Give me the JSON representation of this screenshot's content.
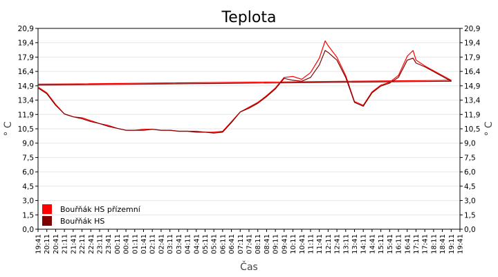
{
  "chart_data": {
    "type": "line",
    "title": "Teplota",
    "xlabel": "Čas",
    "ylabel": "° C",
    "ylim": [
      0,
      20.9
    ],
    "y_ticks": [
      "0,0",
      "1,5",
      "3,0",
      "4,5",
      "6,0",
      "7,5",
      "9,0",
      "10,5",
      "11,9",
      "13,4",
      "14,9",
      "16,4",
      "17,9",
      "19,4",
      "20,9"
    ],
    "x_ticks": [
      "19:41",
      "20:11",
      "20:41",
      "21:11",
      "21:41",
      "22:11",
      "22:41",
      "23:11",
      "23:41",
      "00:11",
      "00:41",
      "01:11",
      "01:41",
      "02:11",
      "02:41",
      "03:11",
      "03:41",
      "04:11",
      "04:41",
      "05:11",
      "05:41",
      "06:11",
      "06:41",
      "07:11",
      "07:41",
      "08:11",
      "08:41",
      "09:11",
      "09:41",
      "10:11",
      "10:41",
      "11:11",
      "11:41",
      "12:11",
      "12:41",
      "13:11",
      "13:41",
      "14:11",
      "14:41",
      "15:11",
      "15:41",
      "16:11",
      "16:41",
      "17:11",
      "17:41",
      "18:11",
      "18:41",
      "19:11",
      "19:41"
    ],
    "grid": true,
    "legend_position": "bottom-left",
    "colors": {
      "series_1": "#ff0000",
      "series_2": "#800000",
      "grid": "#e6e6e6",
      "axis": "#000000"
    },
    "series": [
      {
        "name": "Bouřňák HS přízemní",
        "x": [
          "19:41",
          "20:11",
          "20:41",
          "21:11",
          "21:41",
          "22:11",
          "22:41",
          "23:11",
          "23:41",
          "00:11",
          "00:41",
          "01:11",
          "01:41",
          "02:11",
          "02:41",
          "03:11",
          "03:41",
          "04:11",
          "04:41",
          "05:11",
          "05:41",
          "06:11",
          "06:41",
          "07:11",
          "07:41",
          "08:11",
          "08:41",
          "09:11",
          "09:41",
          "10:11",
          "10:41",
          "11:11",
          "11:41",
          "12:01",
          "12:11",
          "12:41",
          "13:11",
          "13:41",
          "14:11",
          "14:41",
          "15:11",
          "15:41",
          "16:11",
          "16:41",
          "17:01",
          "17:11",
          "17:41",
          "18:11",
          "18:41",
          "19:11",
          "19:41"
        ],
        "values": [
          14.8,
          14.2,
          13.0,
          12.0,
          11.7,
          11.6,
          11.3,
          11.0,
          10.8,
          10.5,
          10.3,
          10.3,
          10.4,
          10.4,
          10.3,
          10.3,
          10.2,
          10.2,
          10.2,
          10.1,
          10.1,
          10.2,
          11.2,
          12.2,
          12.7,
          13.2,
          13.9,
          14.7,
          15.8,
          15.9,
          15.6,
          16.3,
          17.8,
          19.6,
          19.1,
          17.9,
          16.0,
          13.3,
          12.9,
          14.3,
          15.0,
          15.3,
          16.0,
          18.0,
          18.6,
          17.6,
          17.0,
          16.5,
          16.0,
          15.5,
          15.1
        ]
      },
      {
        "name": "Bouřňák HS",
        "x": [
          "19:41",
          "20:11",
          "20:41",
          "21:11",
          "21:41",
          "22:11",
          "22:41",
          "23:11",
          "23:41",
          "00:11",
          "00:41",
          "01:11",
          "01:41",
          "02:11",
          "02:41",
          "03:11",
          "03:41",
          "04:11",
          "04:41",
          "05:11",
          "05:41",
          "06:11",
          "06:41",
          "07:11",
          "07:41",
          "08:11",
          "08:41",
          "09:11",
          "09:41",
          "10:11",
          "10:41",
          "11:11",
          "11:41",
          "12:01",
          "12:11",
          "12:41",
          "13:11",
          "13:41",
          "14:11",
          "14:41",
          "15:11",
          "15:41",
          "16:11",
          "16:41",
          "17:01",
          "17:11",
          "17:41",
          "18:11",
          "18:41",
          "19:11",
          "19:41"
        ],
        "values": [
          14.7,
          14.1,
          12.9,
          12.0,
          11.7,
          11.5,
          11.2,
          11.0,
          10.7,
          10.5,
          10.3,
          10.3,
          10.3,
          10.4,
          10.3,
          10.3,
          10.2,
          10.2,
          10.1,
          10.1,
          10.0,
          10.1,
          11.1,
          12.2,
          12.6,
          13.1,
          13.8,
          14.6,
          15.7,
          15.5,
          15.4,
          15.8,
          17.1,
          18.6,
          18.4,
          17.6,
          15.8,
          13.2,
          12.8,
          14.2,
          14.9,
          15.2,
          15.8,
          17.6,
          17.8,
          17.3,
          16.9,
          16.4,
          15.9,
          15.4,
          15.0
        ]
      }
    ]
  }
}
